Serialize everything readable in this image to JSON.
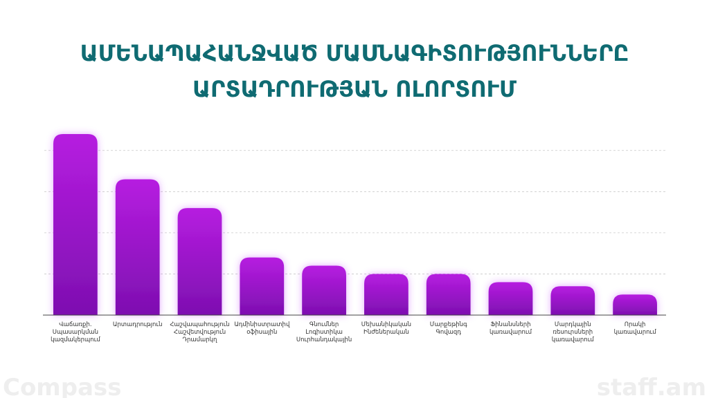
{
  "chart_data": {
    "type": "bar",
    "title": [
      "ԱՄԵՆԱՊԱՀԱՆՋՎԱԾ ՄԱՍՆԱԳԻՏՈՒԹՅՈՒՆՆԵՐԸ",
      "ԱՐՏԱԴՐՈՒԹՅԱՆ ՈԼՈՐՏՈՒՄ"
    ],
    "categories": [
      [
        "Վաճառքի.",
        "Սպասարկման",
        "կազմակերպում"
      ],
      [
        "Արտադրություն"
      ],
      [
        "Հաշվապահություն",
        "Հաշվետվություն",
        "Դրամարկղ"
      ],
      [
        "Ադմինիստրատիվ",
        "օֆիսային"
      ],
      [
        "Գնումներ",
        "Լոգիստիկա",
        "Սուրհանդակային"
      ],
      [
        "Մեխանիկական",
        "Ինժեներական"
      ],
      [
        "Մարքեթինգ",
        "Գովազդ"
      ],
      [
        "Ֆինանսների",
        "կառավարում"
      ],
      [
        "Մարդկային",
        "ռեսուրսների",
        "կառավարում"
      ],
      [
        "Որակի",
        "կառավարում"
      ]
    ],
    "values": [
      4.4,
      3.3,
      2.6,
      1.4,
      1.2,
      1.0,
      1.0,
      0.8,
      0.7,
      0.5
    ],
    "color": "#a117d6",
    "ylim": [
      0,
      4.5
    ],
    "grid_lines": [
      1,
      2,
      3,
      4
    ],
    "logos": [
      "Compass",
      "staff.am"
    ]
  }
}
